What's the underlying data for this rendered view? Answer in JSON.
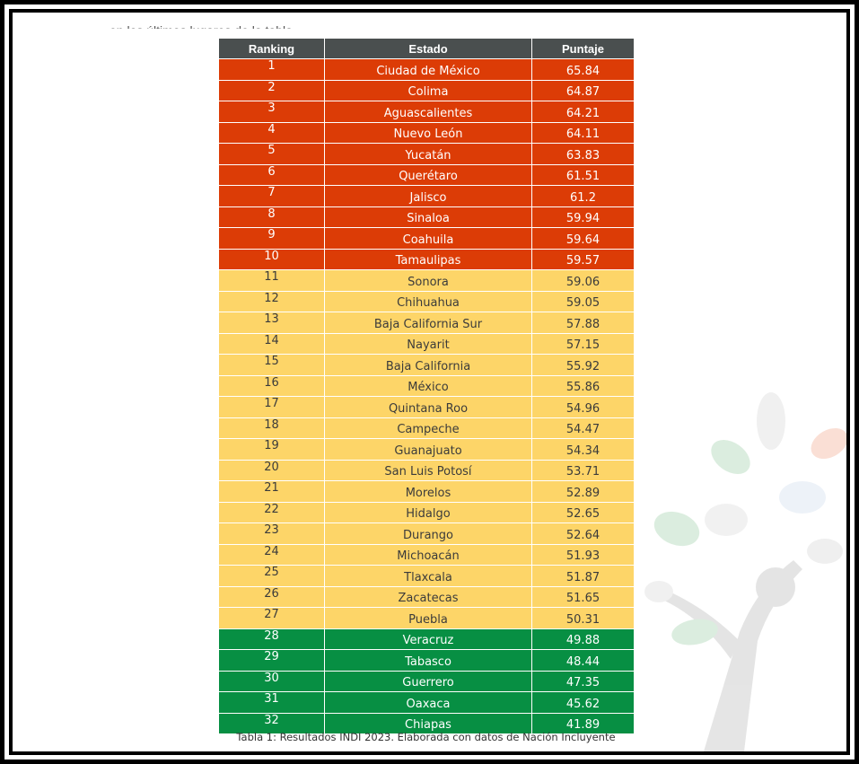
{
  "intro_text": "en los últimos lugares de la tabla",
  "colors": {
    "header": "#4a4f4f",
    "top_tier": "#dc3c06",
    "mid_tier": "#fdd568",
    "low_tier": "#078f43"
  },
  "table": {
    "headers": {
      "rank": "Ranking",
      "state": "Estado",
      "score": "Puntaje"
    },
    "rows": [
      {
        "rank": "1",
        "state": "Ciudad de México",
        "score": "65.84",
        "tier": "top"
      },
      {
        "rank": "2",
        "state": "Colima",
        "score": "64.87",
        "tier": "top"
      },
      {
        "rank": "3",
        "state": "Aguascalientes",
        "score": "64.21",
        "tier": "top"
      },
      {
        "rank": "4",
        "state": "Nuevo León",
        "score": "64.11",
        "tier": "top"
      },
      {
        "rank": "5",
        "state": "Yucatán",
        "score": "63.83",
        "tier": "top"
      },
      {
        "rank": "6",
        "state": "Querétaro",
        "score": "61.51",
        "tier": "top"
      },
      {
        "rank": "7",
        "state": "Jalisco",
        "score": "61.2",
        "tier": "top"
      },
      {
        "rank": "8",
        "state": "Sinaloa",
        "score": "59.94",
        "tier": "top"
      },
      {
        "rank": "9",
        "state": "Coahuila",
        "score": "59.64",
        "tier": "top"
      },
      {
        "rank": "10",
        "state": "Tamaulipas",
        "score": "59.57",
        "tier": "top"
      },
      {
        "rank": "11",
        "state": "Sonora",
        "score": "59.06",
        "tier": "mid"
      },
      {
        "rank": "12",
        "state": "Chihuahua",
        "score": "59.05",
        "tier": "mid"
      },
      {
        "rank": "13",
        "state": "Baja California Sur",
        "score": "57.88",
        "tier": "mid"
      },
      {
        "rank": "14",
        "state": "Nayarit",
        "score": "57.15",
        "tier": "mid"
      },
      {
        "rank": "15",
        "state": "Baja California",
        "score": "55.92",
        "tier": "mid"
      },
      {
        "rank": "16",
        "state": "México",
        "score": "55.86",
        "tier": "mid"
      },
      {
        "rank": "17",
        "state": "Quintana Roo",
        "score": "54.96",
        "tier": "mid"
      },
      {
        "rank": "18",
        "state": "Campeche",
        "score": "54.47",
        "tier": "mid"
      },
      {
        "rank": "19",
        "state": "Guanajuato",
        "score": "54.34",
        "tier": "mid"
      },
      {
        "rank": "20",
        "state": "San Luis Potosí",
        "score": "53.71",
        "tier": "mid"
      },
      {
        "rank": "21",
        "state": "Morelos",
        "score": "52.89",
        "tier": "mid"
      },
      {
        "rank": "22",
        "state": "Hidalgo",
        "score": "52.65",
        "tier": "mid"
      },
      {
        "rank": "23",
        "state": "Durango",
        "score": "52.64",
        "tier": "mid"
      },
      {
        "rank": "24",
        "state": "Michoacán",
        "score": "51.93",
        "tier": "mid"
      },
      {
        "rank": "25",
        "state": "Tlaxcala",
        "score": "51.87",
        "tier": "mid"
      },
      {
        "rank": "26",
        "state": "Zacatecas",
        "score": "51.65",
        "tier": "mid"
      },
      {
        "rank": "27",
        "state": "Puebla",
        "score": "50.31",
        "tier": "mid"
      },
      {
        "rank": "28",
        "state": "Veracruz",
        "score": "49.88",
        "tier": "low"
      },
      {
        "rank": "29",
        "state": "Tabasco",
        "score": "48.44",
        "tier": "low"
      },
      {
        "rank": "30",
        "state": "Guerrero",
        "score": "47.35",
        "tier": "low"
      },
      {
        "rank": "31",
        "state": "Oaxaca",
        "score": "45.62",
        "tier": "low"
      },
      {
        "rank": "32",
        "state": "Chiapas",
        "score": "41.89",
        "tier": "low"
      }
    ]
  },
  "caption": "Tabla 1: Resultados INDI 2023. Elaborada con datos de Nación Incluyente",
  "watermark_icon": "tree-logo-icon"
}
